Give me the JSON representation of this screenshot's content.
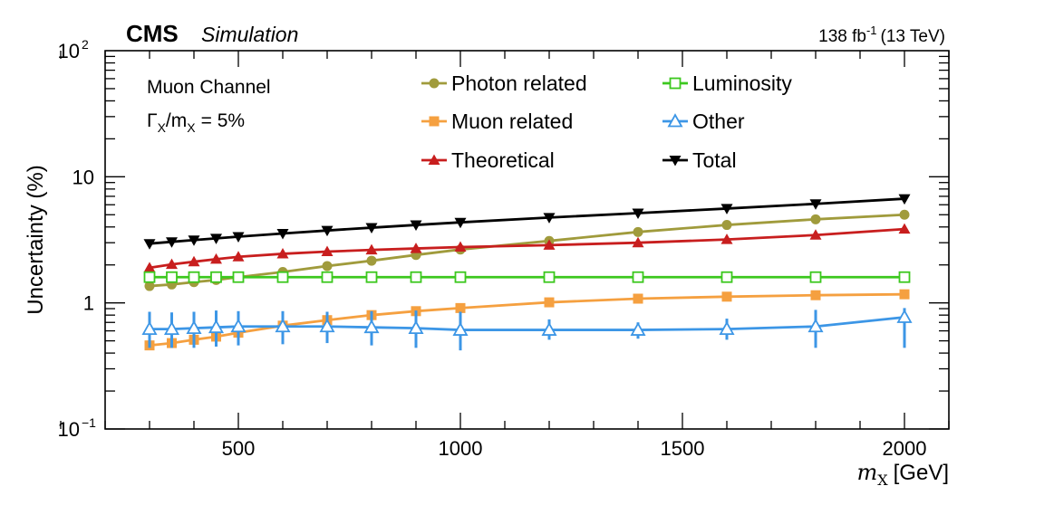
{
  "header": {
    "experiment": "CMS",
    "tag": "Simulation",
    "lumi_value": "138 fb",
    "lumi_exp": "-1",
    "lumi_energy": "(13 TeV)"
  },
  "annotations": {
    "channel": "Muon Channel",
    "width_gamma": "Γ",
    "width_sub1": "X",
    "width_mid": "/m",
    "width_sub2": "X",
    "width_value": "= 5%"
  },
  "chart_data": {
    "type": "line",
    "title": "",
    "xlabel_symbol": "m",
    "xlabel_sub": "X",
    "xlabel_unit": "[GeV]",
    "ylabel": "Uncertainty (%)",
    "xlim": [
      200,
      2100
    ],
    "ylim": [
      0.1,
      100
    ],
    "yscale": "log",
    "x_ticks": [
      500,
      1000,
      1500,
      2000
    ],
    "y_tick_labels": [
      {
        "value": 0.1,
        "base": "10",
        "exp": "−1"
      },
      {
        "value": 1,
        "base": "1",
        "exp": ""
      },
      {
        "value": 10,
        "base": "10",
        "exp": ""
      },
      {
        "value": 100,
        "base": "10",
        "exp": "2"
      }
    ],
    "series": [
      {
        "name": "Photon related",
        "color": "#a09b3c",
        "marker": "circle",
        "x": [
          300,
          350,
          400,
          450,
          500,
          600,
          700,
          800,
          900,
          1000,
          1200,
          1400,
          1600,
          1800,
          2000
        ],
        "values": [
          1.36,
          1.4,
          1.46,
          1.52,
          1.6,
          1.76,
          1.96,
          2.16,
          2.4,
          2.65,
          3.1,
          3.65,
          4.15,
          4.6,
          5.0
        ]
      },
      {
        "name": "Muon related",
        "color": "#f5a040",
        "marker": "square",
        "x": [
          300,
          350,
          400,
          450,
          500,
          600,
          700,
          800,
          900,
          1000,
          1200,
          1400,
          1600,
          1800,
          2000
        ],
        "values": [
          0.46,
          0.48,
          0.51,
          0.54,
          0.58,
          0.66,
          0.73,
          0.8,
          0.86,
          0.91,
          1.01,
          1.08,
          1.12,
          1.15,
          1.17
        ]
      },
      {
        "name": "Theoretical",
        "color": "#c81e1e",
        "marker": "triangle-up",
        "x": [
          300,
          350,
          400,
          450,
          500,
          600,
          700,
          800,
          900,
          1000,
          1200,
          1400,
          1600,
          1800,
          2000
        ],
        "values": [
          1.9,
          2.02,
          2.12,
          2.22,
          2.32,
          2.45,
          2.55,
          2.63,
          2.7,
          2.77,
          2.87,
          3.0,
          3.18,
          3.45,
          3.85
        ]
      },
      {
        "name": "Luminosity",
        "color": "#3cc81e",
        "marker": "open-square",
        "x": [
          300,
          350,
          400,
          450,
          500,
          600,
          700,
          800,
          900,
          1000,
          1200,
          1400,
          1600,
          1800,
          2000
        ],
        "values": [
          1.6,
          1.6,
          1.6,
          1.6,
          1.6,
          1.6,
          1.6,
          1.6,
          1.6,
          1.6,
          1.6,
          1.6,
          1.6,
          1.6,
          1.6
        ]
      },
      {
        "name": "Other",
        "color": "#3c96e6",
        "marker": "open-triangle-up",
        "x": [
          300,
          350,
          400,
          450,
          500,
          600,
          700,
          800,
          900,
          1000,
          1200,
          1400,
          1600,
          1800,
          2000
        ],
        "values": [
          0.62,
          0.62,
          0.63,
          0.64,
          0.65,
          0.65,
          0.65,
          0.64,
          0.63,
          0.61,
          0.61,
          0.61,
          0.62,
          0.65,
          0.77
        ],
        "err_low": [
          0.44,
          0.44,
          0.44,
          0.45,
          0.46,
          0.47,
          0.48,
          0.46,
          0.44,
          0.42,
          0.51,
          0.52,
          0.51,
          0.44,
          0.44
        ],
        "err_high": [
          0.85,
          0.84,
          0.85,
          0.87,
          0.86,
          0.86,
          0.85,
          0.86,
          0.87,
          0.85,
          0.74,
          0.7,
          0.75,
          0.88,
          0.91
        ]
      },
      {
        "name": "Total",
        "color": "#000000",
        "marker": "triangle-down",
        "x": [
          300,
          350,
          400,
          450,
          500,
          600,
          700,
          800,
          900,
          1000,
          1200,
          1400,
          1600,
          1800,
          2000
        ],
        "values": [
          2.95,
          3.05,
          3.15,
          3.25,
          3.35,
          3.55,
          3.75,
          3.95,
          4.15,
          4.35,
          4.75,
          5.15,
          5.6,
          6.1,
          6.7
        ]
      }
    ]
  }
}
